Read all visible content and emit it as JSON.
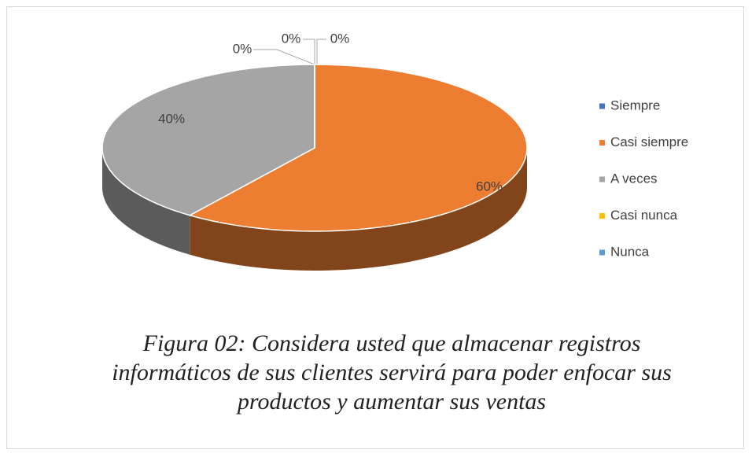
{
  "chart_data": {
    "type": "pie",
    "title": "Figura 02: Considera usted que almacenar registros informáticos de sus clientes servirá para poder enfocar sus productos y aumentar sus ventas",
    "categories": [
      "Siempre",
      "Casi siempre",
      "A veces",
      "Casi nunca",
      "Nunca"
    ],
    "values": [
      0,
      60,
      40,
      0,
      0
    ],
    "value_labels": [
      "0%",
      "60%",
      "40%",
      "0%",
      "0%"
    ],
    "colors": [
      "#4472c4",
      "#ed7d31",
      "#a5a5a5",
      "#ffc000",
      "#5b9bd5"
    ],
    "legend": "right"
  }
}
